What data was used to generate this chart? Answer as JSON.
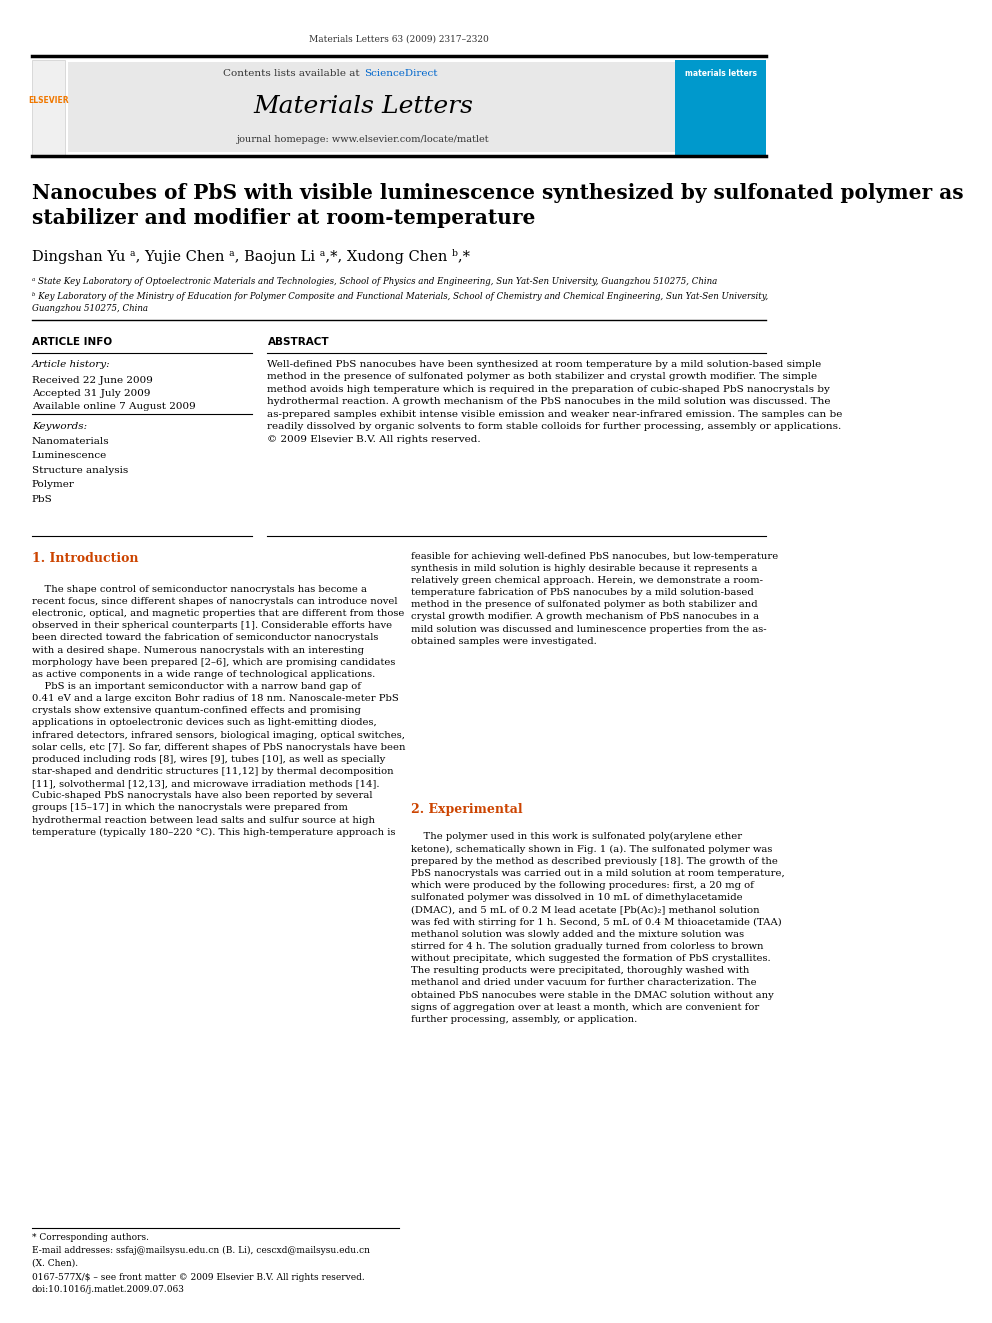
{
  "page_width": 9.92,
  "page_height": 13.23,
  "bg_color": "#ffffff",
  "top_journal_ref": "Materials Letters 63 (2009) 2317–2320",
  "header_bg": "#e8e8e8",
  "header_contents_text": "Contents lists available at ",
  "header_sciencedirect": "ScienceDirect",
  "header_journal_name": "Materials Letters",
  "header_homepage": "journal homepage: www.elsevier.com/locate/matlet",
  "elsevier_color": "#f07800",
  "sciencedirect_color": "#0066cc",
  "ml_banner_color": "#0099cc",
  "article_title": "Nanocubes of PbS with visible luminescence synthesized by sulfonated polymer as\nstabilizer and modifier at room-temperature",
  "authors": "Dingshan Yu ᵃ, Yujie Chen ᵃ, Baojun Li ᵃ,*, Xudong Chen ᵇ,*",
  "affil_a": "ᵃ State Key Laboratory of Optoelectronic Materials and Technologies, School of Physics and Engineering, Sun Yat-Sen University, Guangzhou 510275, China",
  "affil_b": "ᵇ Key Laboratory of the Ministry of Education for Polymer Composite and Functional Materials, School of Chemistry and Chemical Engineering, Sun Yat-Sen University,\nGuangzhou 510275, China",
  "section_article_info": "ARTICLE INFO",
  "section_abstract": "ABSTRACT",
  "article_history_label": "Article history:",
  "received": "Received 22 June 2009",
  "accepted": "Accepted 31 July 2009",
  "available": "Available online 7 August 2009",
  "keywords_label": "Keywords:",
  "keywords": [
    "Nanomaterials",
    "Luminescence",
    "Structure analysis",
    "Polymer",
    "PbS"
  ],
  "abstract_text": "Well-defined PbS nanocubes have been synthesized at room temperature by a mild solution-based simple\nmethod in the presence of sulfonated polymer as both stabilizer and crystal growth modifier. The simple\nmethod avoids high temperature which is required in the preparation of cubic-shaped PbS nanocrystals by\nhydrothermal reaction. A growth mechanism of the PbS nanocubes in the mild solution was discussed. The\nas-prepared samples exhibit intense visible emission and weaker near-infrared emission. The samples can be\nreadily dissolved by organic solvents to form stable colloids for further processing, assembly or applications.\n© 2009 Elsevier B.V. All rights reserved.",
  "section1_title": "1. Introduction",
  "intro_col1": "    The shape control of semiconductor nanocrystals has become a\nrecent focus, since different shapes of nanocrystals can introduce novel\nelectronic, optical, and magnetic properties that are different from those\nobserved in their spherical counterparts [1]. Considerable efforts have\nbeen directed toward the fabrication of semiconductor nanocrystals\nwith a desired shape. Numerous nanocrystals with an interesting\nmorphology have been prepared [2–6], which are promising candidates\nas active components in a wide range of technological applications.\n    PbS is an important semiconductor with a narrow band gap of\n0.41 eV and a large exciton Bohr radius of 18 nm. Nanoscale-meter PbS\ncrystals show extensive quantum-confined effects and promising\napplications in optoelectronic devices such as light-emitting diodes,\ninfrared detectors, infrared sensors, biological imaging, optical switches,\nsolar cells, etc [7]. So far, different shapes of PbS nanocrystals have been\nproduced including rods [8], wires [9], tubes [10], as well as specially\nstar-shaped and dendritic structures [11,12] by thermal decomposition\n[11], solvothermal [12,13], and microwave irradiation methods [14].\nCubic-shaped PbS nanocrystals have also been reported by several\ngroups [15–17] in which the nanocrystals were prepared from\nhydrothermal reaction between lead salts and sulfur source at high\ntemperature (typically 180–220 °C). This high-temperature approach is",
  "intro_col2": "feasible for achieving well-defined PbS nanocubes, but low-temperature\nsynthesis in mild solution is highly desirable because it represents a\nrelatively green chemical approach. Herein, we demonstrate a room-\ntemperature fabrication of PbS nanocubes by a mild solution-based\nmethod in the presence of sulfonated polymer as both stabilizer and\ncrystal growth modifier. A growth mechanism of PbS nanocubes in a\nmild solution was discussed and luminescence properties from the as-\nobtained samples were investigated.",
  "section2_title": "2. Experimental",
  "exp_col2": "    The polymer used in this work is sulfonated poly(arylene ether\nketone), schematically shown in Fig. 1 (a). The sulfonated polymer was\nprepared by the method as described previously [18]. The growth of the\nPbS nanocrystals was carried out in a mild solution at room temperature,\nwhich were produced by the following procedures: first, a 20 mg of\nsulfonated polymer was dissolved in 10 mL of dimethylacetamide\n(DMAC), and 5 mL of 0.2 M lead acetate [Pb(Ac)₂] methanol solution\nwas fed with stirring for 1 h. Second, 5 mL of 0.4 M thioacetamide (TAA)\nmethanol solution was slowly added and the mixture solution was\nstirred for 4 h. The solution gradually turned from colorless to brown\nwithout precipitate, which suggested the formation of PbS crystallites.\nThe resulting products were precipitated, thoroughly washed with\nmethanol and dried under vacuum for further characterization. The\nobtained PbS nanocubes were stable in the DMAC solution without any\nsigns of aggregation over at least a month, which are convenient for\nfurther processing, assembly, or application.",
  "footer_note": "* Corresponding authors.",
  "footer_email": "E-mail addresses: ssfaj@mailsysu.edu.cn (B. Li), cescxd@mailsysu.edu.cn\n(X. Chen).",
  "footer_issn": "0167-577X/$ – see front matter © 2009 Elsevier B.V. All rights reserved.\ndoi:10.1016/j.matlet.2009.07.063",
  "section_color": "#cc4400",
  "link_color": "#0066cc",
  "title_color": "#000000",
  "text_color": "#000000"
}
